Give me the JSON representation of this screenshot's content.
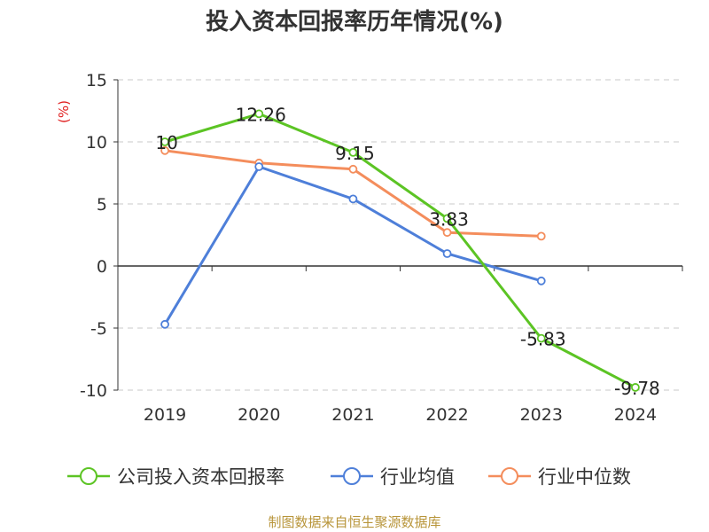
{
  "chart_data": {
    "type": "line",
    "title": "投入资本回报率历年情况(%)",
    "ylabel": "(%)",
    "xlabel": "",
    "categories": [
      "2019",
      "2020",
      "2021",
      "2022",
      "2023",
      "2024"
    ],
    "yticks": [
      "15",
      "10",
      "5",
      "0",
      "-5",
      "-10"
    ],
    "ylim": [
      -10,
      15
    ],
    "grid": true,
    "legend_position": "bottom",
    "series": [
      {
        "name": "公司投入资本回报率",
        "color": "#5cc424",
        "values": [
          10,
          12.26,
          9.15,
          3.83,
          -5.83,
          -9.78
        ],
        "labels": [
          "10",
          "12.26",
          "9.15",
          "3.83",
          "-5.83",
          "-9.78"
        ]
      },
      {
        "name": "行业均值",
        "color": "#4e7fd9",
        "values": [
          -4.7,
          8.0,
          5.4,
          1.0,
          -1.2,
          null
        ]
      },
      {
        "name": "行业中位数",
        "color": "#f48d5c",
        "values": [
          9.3,
          8.3,
          7.8,
          2.7,
          2.4,
          null
        ]
      }
    ]
  },
  "source": "制图数据来自恒生聚源数据库"
}
